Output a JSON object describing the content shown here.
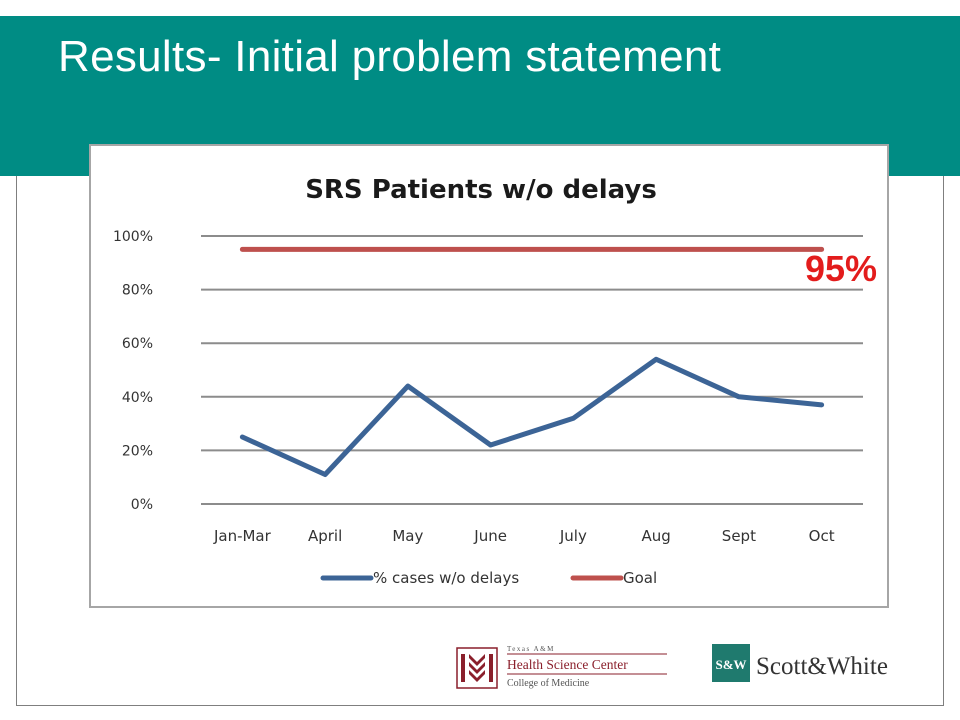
{
  "slide": {
    "title": "Results- Initial problem statement"
  },
  "chart_data": {
    "type": "line",
    "title": "SRS Patients w/o delays",
    "categories": [
      "Jan-Mar",
      "April",
      "May",
      "June",
      "July",
      "Aug",
      "Sept",
      "Oct"
    ],
    "series": [
      {
        "name": "% cases w/o delays",
        "color": "#3c6496",
        "values": [
          0.25,
          0.11,
          0.44,
          0.22,
          0.32,
          0.54,
          0.4,
          0.37
        ]
      },
      {
        "name": "Goal",
        "color": "#be504d",
        "values": [
          0.95,
          0.95,
          0.95,
          0.95,
          0.95,
          0.95,
          0.95,
          0.95
        ]
      }
    ],
    "ylim": [
      0,
      1
    ],
    "yticks": [
      "0%",
      "20%",
      "40%",
      "60%",
      "80%",
      "100%"
    ],
    "grid": true,
    "legend_position": "bottom",
    "annotation": "95%"
  },
  "logos": {
    "hsc": {
      "line1": "Texas A&M",
      "line2": "Health Science Center",
      "line3": "College of Medicine",
      "color": "#8a1f2b"
    },
    "sw": {
      "mark": "S&W",
      "name": "Scott&White",
      "color": "#1f7a6e"
    }
  }
}
